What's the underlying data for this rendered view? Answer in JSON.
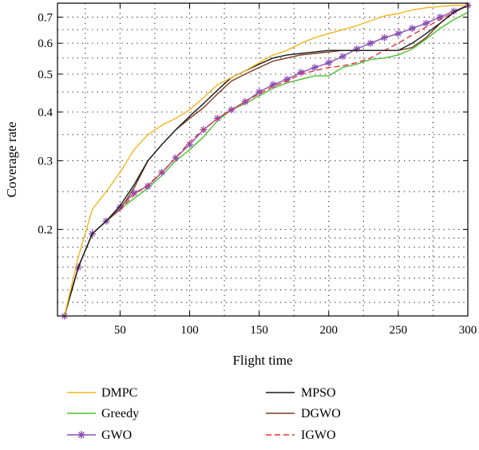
{
  "chart_data": {
    "type": "line",
    "xlabel": "Flight time",
    "ylabel": "Coverage rate",
    "xlim": [
      5,
      300
    ],
    "ylim": [
      0.12,
      0.76
    ],
    "yscale": "log",
    "xticks": [
      50,
      100,
      150,
      200,
      250,
      300
    ],
    "yticks": [
      0.2,
      0.3,
      0.4,
      0.5,
      0.6,
      0.7
    ],
    "xtick_labels": [
      "50",
      "100",
      "150",
      "200",
      "250",
      "300"
    ],
    "ytick_labels": [
      "0.2",
      "0.3",
      "0.4",
      "0.5",
      "0.6",
      "0.7"
    ],
    "grid": true,
    "legend_position": "bottom",
    "series": [
      {
        "name": "DMPC",
        "color": "#f5b51c",
        "dash": "solid",
        "marker": "none",
        "x": [
          10,
          20,
          30,
          40,
          50,
          60,
          70,
          80,
          90,
          100,
          110,
          120,
          130,
          140,
          150,
          160,
          170,
          180,
          190,
          200,
          210,
          220,
          230,
          240,
          250,
          260,
          270,
          280,
          290,
          300
        ],
        "y": [
          0.12,
          0.17,
          0.225,
          0.25,
          0.28,
          0.32,
          0.35,
          0.37,
          0.385,
          0.405,
          0.435,
          0.47,
          0.49,
          0.51,
          0.535,
          0.56,
          0.575,
          0.6,
          0.62,
          0.635,
          0.65,
          0.665,
          0.685,
          0.705,
          0.715,
          0.73,
          0.74,
          0.745,
          0.75,
          0.75
        ]
      },
      {
        "name": "Greedy",
        "color": "#4bbf2f",
        "dash": "solid",
        "marker": "none",
        "x": [
          10,
          20,
          30,
          40,
          50,
          60,
          70,
          80,
          90,
          100,
          110,
          120,
          130,
          140,
          150,
          160,
          170,
          180,
          190,
          200,
          210,
          220,
          230,
          240,
          250,
          260,
          270,
          280,
          290,
          300
        ],
        "y": [
          0.12,
          0.16,
          0.195,
          0.21,
          0.225,
          0.24,
          0.255,
          0.275,
          0.3,
          0.32,
          0.345,
          0.38,
          0.405,
          0.42,
          0.44,
          0.46,
          0.475,
          0.485,
          0.495,
          0.495,
          0.52,
          0.53,
          0.545,
          0.55,
          0.56,
          0.58,
          0.615,
          0.655,
          0.69,
          0.72
        ]
      },
      {
        "name": "GWO",
        "color": "#8a4fb5",
        "dash": "solid",
        "marker": "star",
        "x": [
          10,
          20,
          30,
          40,
          50,
          60,
          70,
          80,
          90,
          100,
          110,
          120,
          130,
          140,
          150,
          160,
          170,
          180,
          190,
          200,
          210,
          220,
          230,
          240,
          250,
          260,
          270,
          280,
          290,
          300
        ],
        "y": [
          0.12,
          0.16,
          0.195,
          0.21,
          0.228,
          0.248,
          0.258,
          0.28,
          0.305,
          0.33,
          0.36,
          0.385,
          0.405,
          0.425,
          0.45,
          0.47,
          0.485,
          0.505,
          0.52,
          0.535,
          0.555,
          0.58,
          0.6,
          0.62,
          0.635,
          0.655,
          0.675,
          0.7,
          0.725,
          0.75
        ]
      },
      {
        "name": "MPSO",
        "color": "#1a1a1a",
        "dash": "solid",
        "marker": "none",
        "x": [
          10,
          20,
          30,
          40,
          50,
          60,
          70,
          80,
          90,
          100,
          110,
          120,
          130,
          140,
          150,
          160,
          170,
          180,
          190,
          200,
          210,
          220,
          230,
          240,
          250,
          260,
          270,
          280,
          290,
          300
        ],
        "y": [
          0.12,
          0.16,
          0.195,
          0.21,
          0.23,
          0.26,
          0.3,
          0.33,
          0.36,
          0.39,
          0.42,
          0.455,
          0.49,
          0.51,
          0.53,
          0.55,
          0.56,
          0.565,
          0.57,
          0.575,
          0.575,
          0.575,
          0.575,
          0.575,
          0.575,
          0.6,
          0.635,
          0.675,
          0.72,
          0.75
        ]
      },
      {
        "name": "DGWO",
        "color": "#7a3b1e",
        "dash": "solid",
        "marker": "none",
        "x": [
          10,
          20,
          30,
          40,
          50,
          60,
          70,
          80,
          90,
          100,
          110,
          120,
          130,
          140,
          150,
          160,
          170,
          180,
          190,
          200,
          210,
          220,
          230,
          240,
          250,
          260,
          270,
          280,
          290,
          300
        ],
        "y": [
          0.12,
          0.16,
          0.195,
          0.21,
          0.225,
          0.255,
          0.3,
          0.33,
          0.36,
          0.385,
          0.41,
          0.445,
          0.48,
          0.5,
          0.52,
          0.54,
          0.55,
          0.56,
          0.565,
          0.57,
          0.575,
          0.575,
          0.575,
          0.575,
          0.575,
          0.585,
          0.62,
          0.675,
          0.72,
          0.75
        ]
      },
      {
        "name": "IGWO",
        "color": "#e8333a",
        "dash": "dashed",
        "marker": "none",
        "x": [
          10,
          20,
          30,
          40,
          50,
          60,
          70,
          80,
          90,
          100,
          110,
          120,
          130,
          140,
          150,
          160,
          170,
          180,
          190,
          200,
          210,
          220,
          230,
          240,
          250,
          260,
          270,
          280,
          290,
          300
        ],
        "y": [
          0.12,
          0.16,
          0.195,
          0.21,
          0.225,
          0.245,
          0.26,
          0.28,
          0.305,
          0.335,
          0.36,
          0.385,
          0.405,
          0.425,
          0.445,
          0.465,
          0.48,
          0.5,
          0.51,
          0.52,
          0.525,
          0.535,
          0.55,
          0.575,
          0.6,
          0.63,
          0.66,
          0.69,
          0.72,
          0.75
        ]
      }
    ]
  }
}
